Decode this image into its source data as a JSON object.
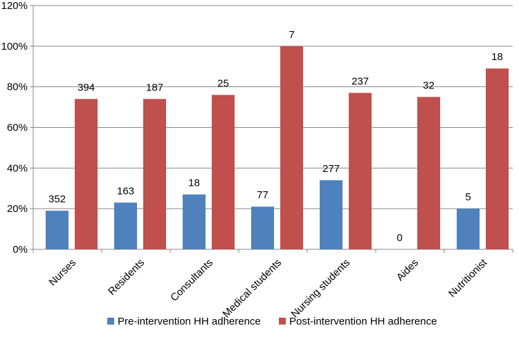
{
  "chart_data": {
    "type": "bar",
    "categories": [
      "Nurses",
      "Residents",
      "Consultants",
      "Medical students",
      "Nursing students",
      "Aides",
      "Nutritionist"
    ],
    "series": [
      {
        "name": "Pre-intervention HH adherence",
        "color": "#4F81BD",
        "values": [
          19,
          23,
          27,
          21,
          34,
          0,
          20
        ],
        "labels": [
          "352",
          "163",
          "18",
          "77",
          "277",
          "0",
          "5"
        ]
      },
      {
        "name": "Post-intervention HH adherence",
        "color": "#C0504D",
        "values": [
          74,
          74,
          76,
          100,
          77,
          75,
          89
        ],
        "labels": [
          "394",
          "187",
          "25",
          "7",
          "237",
          "32",
          "18"
        ]
      }
    ],
    "ylim": [
      0,
      120
    ],
    "yticks": [
      "0%",
      "20%",
      "40%",
      "60%",
      "80%",
      "100%",
      "120%"
    ],
    "grid": true,
    "legend_position": "bottom"
  }
}
